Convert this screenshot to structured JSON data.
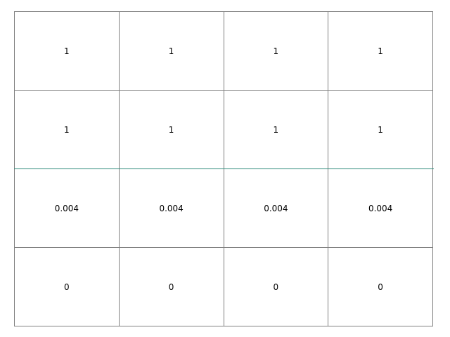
{
  "chart_data": {
    "type": "table",
    "rows": [
      [
        "1",
        "1",
        "1",
        "1"
      ],
      [
        "1",
        "1",
        "1",
        "1"
      ],
      [
        "0.004",
        "0.004",
        "0.004",
        "0.004"
      ],
      [
        "0",
        "0",
        "0",
        "0"
      ]
    ]
  },
  "colors": {
    "grid": "#808080",
    "separator": "#2e8b7a",
    "text": "#000000",
    "background": "#ffffff"
  }
}
